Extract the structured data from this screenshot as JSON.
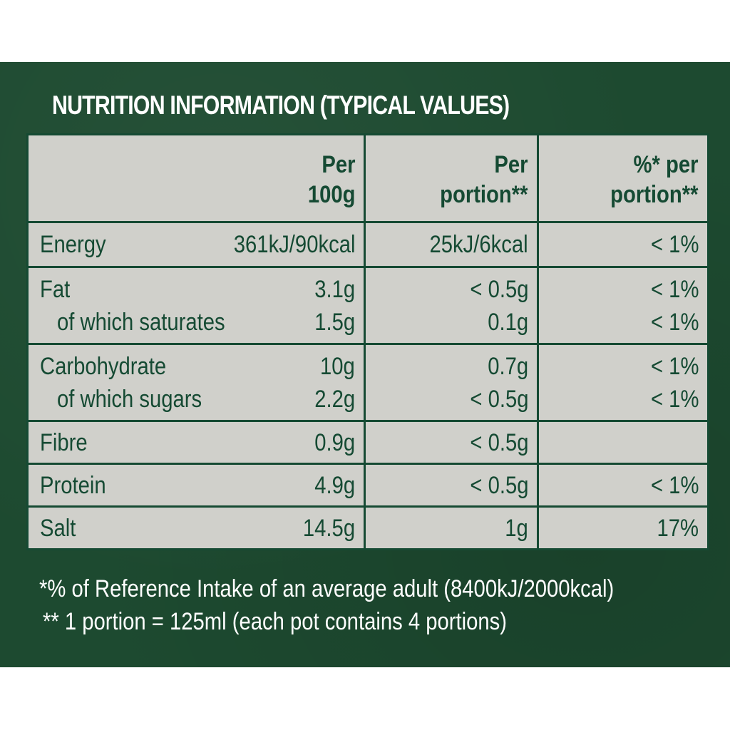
{
  "title": "NUTRITION INFORMATION (TYPICAL VALUES)",
  "headers": {
    "per100g": [
      "Per",
      "100g"
    ],
    "perPortion": [
      "Per",
      "portion**"
    ],
    "pctPortion": [
      "%* per",
      "portion**"
    ]
  },
  "rows": [
    {
      "lines": [
        {
          "name": "Energy",
          "per100g": "361kJ/90kcal",
          "perPortion": "25kJ/6kcal",
          "pct": "< 1%"
        }
      ]
    },
    {
      "lines": [
        {
          "name": "Fat",
          "per100g": "3.1g",
          "perPortion": "< 0.5g",
          "pct": "< 1%"
        },
        {
          "name": "of which saturates",
          "per100g": "1.5g",
          "perPortion": "0.1g",
          "pct": "< 1%"
        }
      ]
    },
    {
      "lines": [
        {
          "name": "Carbohydrate",
          "per100g": "10g",
          "perPortion": "0.7g",
          "pct": "< 1%"
        },
        {
          "name": "of which sugars",
          "per100g": "2.2g",
          "perPortion": "< 0.5g",
          "pct": "< 1%"
        }
      ]
    },
    {
      "lines": [
        {
          "name": "Fibre",
          "per100g": "0.9g",
          "perPortion": "< 0.5g",
          "pct": ""
        }
      ]
    },
    {
      "lines": [
        {
          "name": "Protein",
          "per100g": "4.9g",
          "perPortion": "< 0.5g",
          "pct": "< 1%"
        }
      ]
    },
    {
      "lines": [
        {
          "name": "Salt",
          "per100g": "14.5g",
          "perPortion": "1g",
          "pct": "17%"
        }
      ]
    }
  ],
  "footnotes": [
    "*% of Reference Intake of an average adult (8400kJ/2000kcal)",
    "** 1 portion = 125ml (each pot contains 4 portions)"
  ],
  "colors": {
    "panel": "#1d4a30",
    "table_bg": "#d0d0cb",
    "ink": "#154a33",
    "text_light": "#ffffff"
  }
}
